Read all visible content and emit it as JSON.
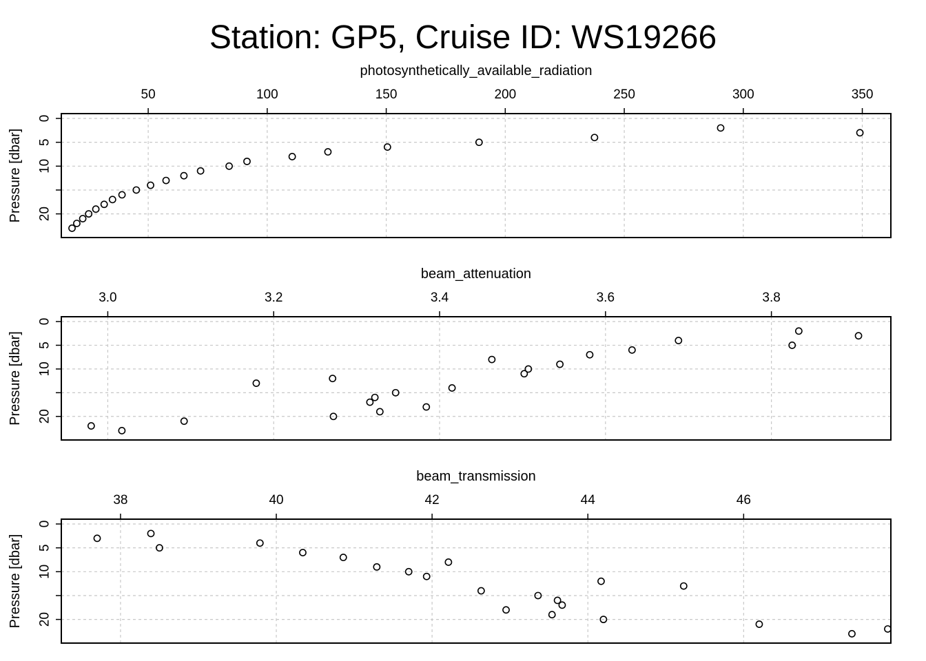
{
  "figure": {
    "title": "Station: GP5, Cruise ID: WS19266"
  },
  "chart_data": [
    {
      "type": "scatter",
      "title": "photosynthetically_available_radiation",
      "xlabel": "",
      "ylabel": "Pressure [dbar]",
      "x_axis_position": "top",
      "y_reversed": true,
      "grid": true,
      "xlim": [
        13.5,
        362
      ],
      "ylim": [
        0,
        24
      ],
      "xticks": [
        50,
        100,
        150,
        200,
        250,
        300,
        350
      ],
      "xtick_labels": [
        "50",
        "100",
        "150",
        "200",
        "250",
        "300",
        "350"
      ],
      "yticks": [
        0,
        5,
        10,
        15,
        20
      ],
      "ytick_labels": [
        "0",
        "5",
        "10",
        "",
        "20"
      ],
      "points": [
        {
          "x": 349.0,
          "y": 3
        },
        {
          "x": 290.5,
          "y": 2
        },
        {
          "x": 237.5,
          "y": 4
        },
        {
          "x": 189.0,
          "y": 5
        },
        {
          "x": 150.5,
          "y": 6
        },
        {
          "x": 125.5,
          "y": 7
        },
        {
          "x": 110.5,
          "y": 8
        },
        {
          "x": 91.5,
          "y": 9
        },
        {
          "x": 84.0,
          "y": 10
        },
        {
          "x": 72.0,
          "y": 11
        },
        {
          "x": 65.0,
          "y": 12
        },
        {
          "x": 57.5,
          "y": 13
        },
        {
          "x": 51.0,
          "y": 14
        },
        {
          "x": 45.0,
          "y": 15
        },
        {
          "x": 39.0,
          "y": 16
        },
        {
          "x": 35.0,
          "y": 17
        },
        {
          "x": 31.5,
          "y": 18
        },
        {
          "x": 28.0,
          "y": 19
        },
        {
          "x": 25.0,
          "y": 20
        },
        {
          "x": 22.5,
          "y": 21
        },
        {
          "x": 20.0,
          "y": 22
        },
        {
          "x": 18.0,
          "y": 23
        }
      ]
    },
    {
      "type": "scatter",
      "title": "beam_attenuation",
      "xlabel": "",
      "ylabel": "Pressure [dbar]",
      "x_axis_position": "top",
      "y_reversed": true,
      "grid": true,
      "xlim": [
        2.944,
        3.944
      ],
      "ylim": [
        0,
        24
      ],
      "xticks": [
        3.0,
        3.2,
        3.4,
        3.6,
        3.8
      ],
      "xtick_labels": [
        "3.0",
        "3.2",
        "3.4",
        "3.6",
        "3.8"
      ],
      "yticks": [
        0,
        5,
        10,
        15,
        20
      ],
      "ytick_labels": [
        "0",
        "5",
        "10",
        "",
        "20"
      ],
      "points": [
        {
          "x": 3.833,
          "y": 2
        },
        {
          "x": 3.905,
          "y": 3
        },
        {
          "x": 3.688,
          "y": 4
        },
        {
          "x": 3.825,
          "y": 5
        },
        {
          "x": 3.632,
          "y": 6
        },
        {
          "x": 3.581,
          "y": 7
        },
        {
          "x": 3.463,
          "y": 8
        },
        {
          "x": 3.545,
          "y": 9
        },
        {
          "x": 3.507,
          "y": 10
        },
        {
          "x": 3.502,
          "y": 11
        },
        {
          "x": 3.271,
          "y": 12
        },
        {
          "x": 3.179,
          "y": 13
        },
        {
          "x": 3.415,
          "y": 14
        },
        {
          "x": 3.347,
          "y": 15
        },
        {
          "x": 3.322,
          "y": 16
        },
        {
          "x": 3.316,
          "y": 17
        },
        {
          "x": 3.384,
          "y": 18
        },
        {
          "x": 3.328,
          "y": 19
        },
        {
          "x": 3.272,
          "y": 20
        },
        {
          "x": 3.092,
          "y": 21
        },
        {
          "x": 2.98,
          "y": 22
        },
        {
          "x": 3.017,
          "y": 23
        }
      ]
    },
    {
      "type": "scatter",
      "title": "beam_transmission",
      "xlabel": "",
      "ylabel": "Pressure [dbar]",
      "x_axis_position": "top",
      "y_reversed": true,
      "grid": true,
      "xlim": [
        37.24,
        47.89
      ],
      "ylim": [
        0,
        24
      ],
      "xticks": [
        38,
        40,
        42,
        44,
        46
      ],
      "xtick_labels": [
        "38",
        "40",
        "42",
        "44",
        "46"
      ],
      "yticks": [
        0,
        5,
        10,
        15,
        20
      ],
      "ytick_labels": [
        "0",
        "5",
        "10",
        "",
        "20"
      ],
      "points": [
        {
          "x": 38.39,
          "y": 2
        },
        {
          "x": 37.7,
          "y": 3
        },
        {
          "x": 39.79,
          "y": 4
        },
        {
          "x": 38.5,
          "y": 5
        },
        {
          "x": 40.34,
          "y": 6
        },
        {
          "x": 40.86,
          "y": 7
        },
        {
          "x": 42.21,
          "y": 8
        },
        {
          "x": 41.29,
          "y": 9
        },
        {
          "x": 41.7,
          "y": 10
        },
        {
          "x": 41.93,
          "y": 11
        },
        {
          "x": 44.17,
          "y": 12
        },
        {
          "x": 45.23,
          "y": 13
        },
        {
          "x": 42.63,
          "y": 14
        },
        {
          "x": 43.36,
          "y": 15
        },
        {
          "x": 43.61,
          "y": 16
        },
        {
          "x": 43.67,
          "y": 17
        },
        {
          "x": 42.95,
          "y": 18
        },
        {
          "x": 43.54,
          "y": 19
        },
        {
          "x": 44.2,
          "y": 20
        },
        {
          "x": 46.2,
          "y": 21
        },
        {
          "x": 47.85,
          "y": 22
        },
        {
          "x": 47.39,
          "y": 23
        }
      ]
    }
  ]
}
